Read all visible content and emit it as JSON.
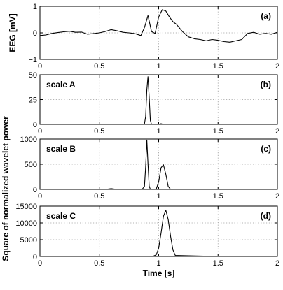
{
  "chart_data": [
    {
      "type": "line",
      "panel_label": "(a)",
      "scale_label": "",
      "ylabel": "EEG [mV]",
      "xlim": [
        0,
        2
      ],
      "ylim": [
        -1,
        1
      ],
      "x_ticks": [
        0,
        0.5,
        1,
        1.5,
        2
      ],
      "x_tick_labels": [
        "0",
        "0.5",
        "1",
        "1.5",
        "2"
      ],
      "y_ticks": [
        -1,
        0,
        1
      ],
      "y_tick_labels": [
        "−1",
        "0",
        "1"
      ],
      "grid": true,
      "series": [
        {
          "x": [
            0,
            0.05,
            0.1,
            0.15,
            0.2,
            0.25,
            0.3,
            0.35,
            0.4,
            0.45,
            0.5,
            0.55,
            0.6,
            0.65,
            0.7,
            0.75,
            0.8,
            0.85,
            0.88,
            0.91,
            0.94,
            0.97,
            1.0,
            1.03,
            1.06,
            1.09,
            1.12,
            1.15,
            1.2,
            1.25,
            1.3,
            1.35,
            1.4,
            1.45,
            1.5,
            1.55,
            1.6,
            1.65,
            1.7,
            1.75,
            1.8,
            1.85,
            1.9,
            1.95,
            2.0
          ],
          "y": [
            -0.1,
            -0.08,
            -0.02,
            0.01,
            0.04,
            0.06,
            0.02,
            0.03,
            -0.05,
            -0.03,
            0.0,
            0.05,
            0.12,
            0.08,
            0.02,
            0.0,
            -0.03,
            -0.1,
            0.2,
            0.65,
            0.05,
            -0.02,
            0.6,
            0.87,
            0.82,
            0.6,
            0.42,
            0.32,
            0.05,
            -0.15,
            -0.22,
            -0.25,
            -0.3,
            -0.25,
            -0.28,
            -0.33,
            -0.35,
            -0.3,
            -0.25,
            -0.02,
            0.02,
            -0.05,
            -0.02,
            -0.05,
            0.02
          ]
        }
      ]
    },
    {
      "type": "line",
      "panel_label": "(b)",
      "scale_label": "scale A",
      "ylabel": "",
      "xlim": [
        0,
        2
      ],
      "ylim": [
        0,
        50
      ],
      "x_ticks": [
        0,
        0.5,
        1,
        1.5,
        2
      ],
      "x_tick_labels": [
        "0",
        "0.5",
        "1",
        "1.5",
        "2"
      ],
      "y_ticks": [
        0,
        25,
        50
      ],
      "y_tick_labels": [
        "0",
        "25",
        "50"
      ],
      "grid": true,
      "series": [
        {
          "x": [
            0,
            0.5,
            0.87,
            0.88,
            0.89,
            0.9,
            0.91,
            0.92,
            0.93,
            0.94,
            1.0,
            1.02,
            1.04,
            1.5,
            2.0
          ],
          "y": [
            0,
            0,
            0,
            0.5,
            8,
            35,
            48,
            28,
            4,
            0,
            0,
            0.7,
            0,
            0,
            0
          ]
        }
      ]
    },
    {
      "type": "line",
      "panel_label": "(c)",
      "scale_label": "scale B",
      "ylabel": "",
      "xlim": [
        0,
        2
      ],
      "ylim": [
        0,
        1000
      ],
      "x_ticks": [
        0,
        0.5,
        1,
        1.5,
        2
      ],
      "x_tick_labels": [
        "0",
        "0.5",
        "1",
        "1.5",
        "2"
      ],
      "y_ticks": [
        0,
        500,
        1000
      ],
      "y_tick_labels": [
        "0",
        "500",
        "1000"
      ],
      "grid": true,
      "series": [
        {
          "x": [
            0,
            0.55,
            0.6,
            0.65,
            0.86,
            0.88,
            0.89,
            0.9,
            0.91,
            0.92,
            0.93,
            0.95,
            0.98,
            1.0,
            1.02,
            1.04,
            1.06,
            1.08,
            1.1,
            1.5,
            2.0
          ],
          "y": [
            0,
            0,
            15,
            0,
            0,
            60,
            450,
            980,
            520,
            70,
            0,
            0,
            10,
            150,
            430,
            490,
            300,
            60,
            0,
            0,
            0
          ]
        }
      ]
    },
    {
      "type": "line",
      "panel_label": "(d)",
      "scale_label": "scale C",
      "ylabel": "",
      "xlabel": "Time [s]",
      "xlim": [
        0,
        2
      ],
      "ylim": [
        0,
        15000
      ],
      "x_ticks": [
        0,
        0.5,
        1,
        1.5,
        2
      ],
      "x_tick_labels": [
        "0",
        "0.5",
        "1",
        "1.5",
        "2"
      ],
      "y_ticks": [
        0,
        5000,
        10000,
        15000
      ],
      "y_tick_labels": [
        "0",
        "5000",
        "10000",
        "15000"
      ],
      "grid": true,
      "series": [
        {
          "x": [
            0,
            0.5,
            0.95,
            0.98,
            1.0,
            1.02,
            1.04,
            1.06,
            1.08,
            1.1,
            1.12,
            1.14,
            1.5,
            2.0
          ],
          "y": [
            0,
            0,
            0,
            500,
            2500,
            7000,
            12000,
            13800,
            11000,
            6000,
            2000,
            300,
            0,
            0
          ]
        }
      ]
    }
  ],
  "shared_ylabel": "Square of normalized wavelet power"
}
